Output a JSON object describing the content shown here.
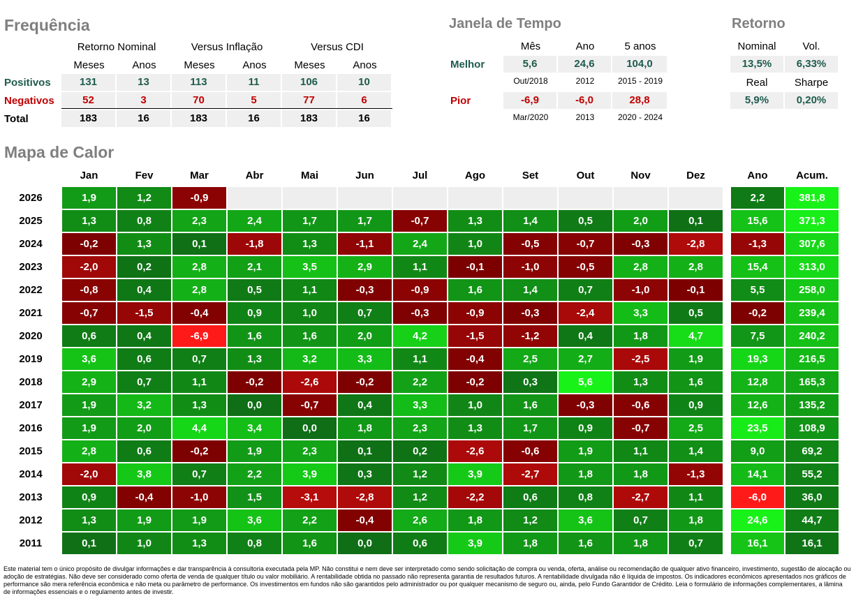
{
  "frequencia": {
    "title": "Frequência",
    "groups": [
      "Retorno Nominal",
      "Versus Inflação",
      "Versus CDI"
    ],
    "subheaders": [
      "Meses",
      "Anos",
      "Meses",
      "Anos",
      "Meses",
      "Anos"
    ],
    "rows": [
      {
        "label": "Positivos",
        "values": [
          "131",
          "13",
          "113",
          "11",
          "106",
          "10"
        ]
      },
      {
        "label": "Negativos",
        "values": [
          "52",
          "3",
          "70",
          "5",
          "77",
          "6"
        ]
      },
      {
        "label": "Total",
        "values": [
          "183",
          "16",
          "183",
          "16",
          "183",
          "16"
        ]
      }
    ]
  },
  "janela": {
    "title": "Janela de Tempo",
    "headers": [
      "Mês",
      "Ano",
      "5 anos"
    ],
    "melhor": {
      "label": "Melhor",
      "values": [
        "5,6",
        "24,6",
        "104,0"
      ],
      "periods": [
        "Out/2018",
        "2012",
        "2015 - 2019"
      ]
    },
    "pior": {
      "label": "Pior",
      "values": [
        "-6,9",
        "-6,0",
        "28,8"
      ],
      "periods": [
        "Mar/2020",
        "2013",
        "2020 - 2024"
      ]
    }
  },
  "retorno": {
    "title": "Retorno",
    "labels": [
      "Nominal",
      "Vol.",
      "Real",
      "Sharpe"
    ],
    "values": [
      "13,5%",
      "6,33%",
      "5,9%",
      "0,20%"
    ]
  },
  "chart_data": {
    "type": "heatmap",
    "title": "Mapa de Calor",
    "columns": [
      "Jan",
      "Fev",
      "Mar",
      "Abr",
      "Mai",
      "Jun",
      "Jul",
      "Ago",
      "Set",
      "Out",
      "Nov",
      "Dez"
    ],
    "extra_columns": [
      "Ano",
      "Acum."
    ],
    "rows": [
      {
        "year": "2026",
        "months": [
          "1,9",
          "1,2",
          "-0,9",
          "",
          "",
          "",
          "",
          "",
          "",
          "",
          "",
          ""
        ],
        "ano": "2,2",
        "acum": "381,8"
      },
      {
        "year": "2025",
        "months": [
          "1,3",
          "0,8",
          "2,3",
          "2,4",
          "1,7",
          "1,7",
          "-0,7",
          "1,3",
          "1,4",
          "0,5",
          "2,0",
          "0,1"
        ],
        "ano": "15,6",
        "acum": "371,3"
      },
      {
        "year": "2024",
        "months": [
          "-0,2",
          "1,3",
          "0,1",
          "-1,8",
          "1,3",
          "-1,1",
          "2,4",
          "1,0",
          "-0,5",
          "-0,7",
          "-0,3",
          "-2,8"
        ],
        "ano": "-1,3",
        "acum": "307,6"
      },
      {
        "year": "2023",
        "months": [
          "-2,0",
          "0,2",
          "2,8",
          "2,1",
          "3,5",
          "2,9",
          "1,1",
          "-0,1",
          "-1,0",
          "-0,5",
          "2,8",
          "2,8"
        ],
        "ano": "15,4",
        "acum": "313,0"
      },
      {
        "year": "2022",
        "months": [
          "-0,8",
          "0,4",
          "2,8",
          "0,5",
          "1,1",
          "-0,3",
          "-0,9",
          "1,6",
          "1,4",
          "0,7",
          "-1,0",
          "-0,1"
        ],
        "ano": "5,5",
        "acum": "258,0"
      },
      {
        "year": "2021",
        "months": [
          "-0,7",
          "-1,5",
          "-0,4",
          "0,9",
          "1,0",
          "0,7",
          "-0,3",
          "-0,9",
          "-0,3",
          "-2,4",
          "3,3",
          "0,5"
        ],
        "ano": "-0,2",
        "acum": "239,4"
      },
      {
        "year": "2020",
        "months": [
          "0,6",
          "0,4",
          "-6,9",
          "1,6",
          "1,6",
          "2,0",
          "4,2",
          "-1,5",
          "-1,2",
          "0,4",
          "1,8",
          "4,7"
        ],
        "ano": "7,5",
        "acum": "240,2"
      },
      {
        "year": "2019",
        "months": [
          "3,6",
          "0,6",
          "0,7",
          "1,3",
          "3,2",
          "3,3",
          "1,1",
          "-0,4",
          "2,5",
          "2,7",
          "-2,5",
          "1,9"
        ],
        "ano": "19,3",
        "acum": "216,5"
      },
      {
        "year": "2018",
        "months": [
          "2,9",
          "0,7",
          "1,1",
          "-0,2",
          "-2,6",
          "-0,2",
          "2,2",
          "-0,2",
          "0,3",
          "5,6",
          "1,3",
          "1,6"
        ],
        "ano": "12,8",
        "acum": "165,3"
      },
      {
        "year": "2017",
        "months": [
          "1,9",
          "3,2",
          "1,3",
          "0,0",
          "-0,7",
          "0,4",
          "3,3",
          "1,0",
          "1,6",
          "-0,3",
          "-0,6",
          "0,9"
        ],
        "ano": "12,6",
        "acum": "135,2"
      },
      {
        "year": "2016",
        "months": [
          "1,9",
          "2,0",
          "4,4",
          "3,4",
          "0,0",
          "1,8",
          "2,3",
          "1,3",
          "1,7",
          "0,9",
          "-0,7",
          "2,5"
        ],
        "ano": "23,5",
        "acum": "108,9"
      },
      {
        "year": "2015",
        "months": [
          "2,8",
          "0,6",
          "-0,2",
          "1,9",
          "2,3",
          "0,1",
          "0,2",
          "-2,6",
          "-0,6",
          "1,9",
          "1,1",
          "1,4"
        ],
        "ano": "9,0",
        "acum": "69,2"
      },
      {
        "year": "2014",
        "months": [
          "-2,0",
          "3,8",
          "0,7",
          "2,2",
          "3,9",
          "0,3",
          "1,2",
          "3,9",
          "-2,7",
          "1,8",
          "1,8",
          "-1,3"
        ],
        "ano": "14,1",
        "acum": "55,2"
      },
      {
        "year": "2013",
        "months": [
          "0,9",
          "-0,4",
          "-1,0",
          "1,5",
          "-3,1",
          "-2,8",
          "1,2",
          "-2,2",
          "0,6",
          "0,8",
          "-2,7",
          "1,1"
        ],
        "ano": "-6,0",
        "acum": "36,0"
      },
      {
        "year": "2012",
        "months": [
          "1,3",
          "1,9",
          "1,9",
          "3,6",
          "2,2",
          "-0,4",
          "2,6",
          "1,8",
          "1,2",
          "3,6",
          "0,7",
          "1,8"
        ],
        "ano": "24,6",
        "acum": "44,7"
      },
      {
        "year": "2011",
        "months": [
          "0,1",
          "1,0",
          "1,3",
          "0,8",
          "1,6",
          "0,0",
          "0,6",
          "3,9",
          "1,8",
          "1,6",
          "1,8",
          "0,7"
        ],
        "ano": "16,1",
        "acum": "16,1"
      }
    ]
  },
  "colors": {
    "green_dark": "#0f6e16",
    "green_bright": "#18f218",
    "red_dark": "#7a0000",
    "red_bright": "#ff1a1a",
    "empty": "#eeeeee",
    "label_teal": "#1e5b4c",
    "label_red": "#c00000"
  },
  "disclaimer": "Este material tem o único propósito de divulgar informações e dar transparência à consultoria executada pela MP. Não constitui e nem deve ser interpretado como sendo solicitação de compra ou venda, oferta, análise ou recomendação de qualquer ativo financeiro, investimento, sugestão de alocação ou adoção de estratégias. Não deve ser considerado como oferta de venda de qualquer título ou valor mobiliário. A rentabilidade obtida no passado não representa garantia de resultados futuros. A rentabilidade divulgada não é líquida de impostos. Os indicadores econômicos apresentados nos gráficos de performance são mera referência econômica e não meta ou parâmetro de performance. Os investimentos em fundos não são garantidos pelo administrador ou por qualquer mecanismo de seguro ou, ainda, pelo Fundo Garantidor de Crédito. Leia o formulário de informações complementares, a lâmina de informações essenciais e o regulamento antes de investir."
}
